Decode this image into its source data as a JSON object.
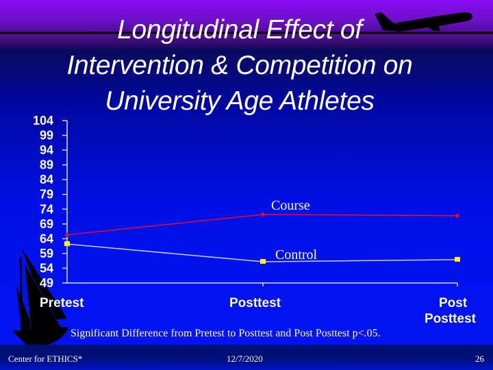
{
  "slide": {
    "title_lines": [
      "Longitudinal Effect of",
      "Intervention & Competition on",
      "University Age Athletes"
    ],
    "note": "Significant Difference from Pretest to Posttest and Post Posttest p<.05.",
    "footer": {
      "left": "Center for ETHICS*",
      "center": "12/7/2020",
      "page_number": "26"
    },
    "decorations": [
      "airplane-silhouette",
      "sailboat-silhouette"
    ],
    "colors": {
      "background_top": "#8a0cf6",
      "background_main": "#0010e6",
      "course_line": "#e0102a",
      "control_line": "#c8d0f0",
      "control_marker": "#ffee22",
      "footer_band": "#001070"
    }
  },
  "chart_data": {
    "type": "line",
    "title": "Longitudinal Effect of Intervention & Competition on University Age Athletes",
    "xlabel": "",
    "ylabel": "",
    "categories": [
      "Pretest",
      "Posttest",
      "Post Posttest"
    ],
    "series": [
      {
        "name": "Course",
        "values": [
          65.3,
          72.2,
          71.8
        ],
        "color": "#e0102a",
        "marker": "diamond"
      },
      {
        "name": "Control",
        "values": [
          62.2,
          56.2,
          56.9
        ],
        "color": "#c8d0f0",
        "marker": "square"
      }
    ],
    "ylim": [
      49,
      104
    ],
    "yticks": [
      104,
      99,
      94,
      89,
      84,
      79,
      74,
      69,
      64,
      59,
      54,
      49
    ],
    "grid": false,
    "legend": "inline labels near series (Course above, Control below)"
  }
}
